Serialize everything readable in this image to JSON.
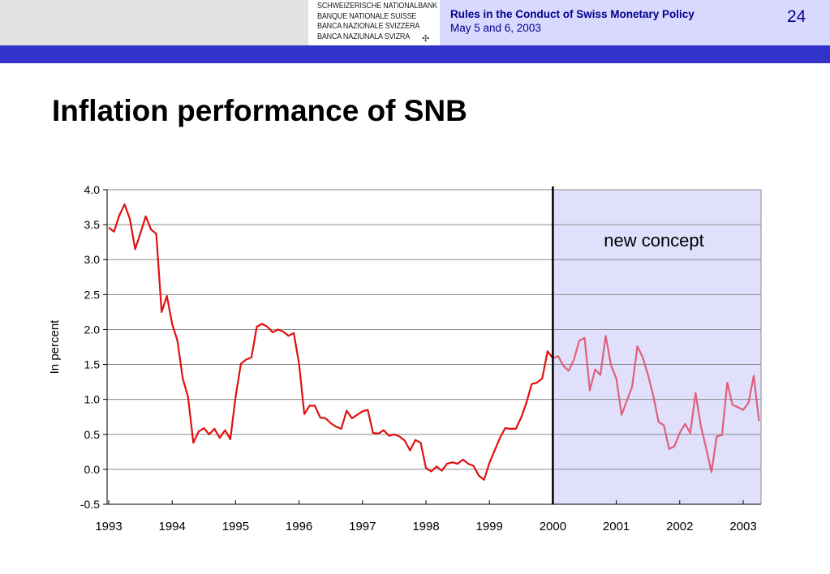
{
  "header": {
    "logo_lines": [
      "SCHWEIZERISCHE NATIONALBANK",
      "BANQUE NATIONALE SUISSE",
      "BANCA NAZIONALE SVIZZERA",
      "BANCA NAZIUNALA SVIZRA"
    ],
    "logo_mark": "✣",
    "title": "Rules in the Conduct of Swiss Monetary Policy",
    "date": "May 5 and 6, 2003",
    "page_number": "24"
  },
  "slide": {
    "title": "Inflation performance of SNB"
  },
  "colors": {
    "band": "#e2e2e2",
    "header_box": "#d9d9ff",
    "blue_bar": "#3333cc",
    "header_text": "#00008b",
    "shade": "#e0e0fc",
    "series_before": "#e01010",
    "series_after": "#e0607a"
  },
  "chart_data": {
    "type": "line",
    "ylabel": "In percent",
    "ylim": [
      -0.5,
      4.0
    ],
    "yticks": [
      "4.0",
      "3.5",
      "3.0",
      "2.5",
      "2.0",
      "1.5",
      "1.0",
      "0.5",
      "0.0",
      "-0.5"
    ],
    "xlim": [
      1993,
      2003.33
    ],
    "xticks": [
      "1993",
      "1994",
      "1995",
      "1996",
      "1997",
      "1998",
      "1999",
      "2000",
      "2001",
      "2002",
      "2003"
    ],
    "grid": true,
    "annotation": "new concept",
    "regime_change_x": 2000,
    "x_start": 1993,
    "step": 0.08333,
    "values": [
      3.46,
      3.4,
      3.63,
      3.79,
      3.58,
      3.15,
      3.38,
      3.62,
      3.43,
      3.37,
      2.25,
      2.48,
      2.08,
      1.84,
      1.3,
      1.04,
      0.38,
      0.54,
      0.59,
      0.5,
      0.58,
      0.45,
      0.56,
      0.43,
      1.04,
      1.51,
      1.57,
      1.6,
      2.04,
      2.08,
      2.04,
      1.96,
      2.0,
      1.97,
      1.91,
      1.95,
      1.51,
      0.79,
      0.91,
      0.91,
      0.74,
      0.73,
      0.66,
      0.61,
      0.58,
      0.84,
      0.73,
      0.78,
      0.83,
      0.85,
      0.52,
      0.51,
      0.56,
      0.48,
      0.5,
      0.47,
      0.41,
      0.27,
      0.42,
      0.38,
      0.02,
      -0.03,
      0.04,
      -0.02,
      0.08,
      0.1,
      0.08,
      0.14,
      0.08,
      0.05,
      -0.09,
      -0.15,
      0.09,
      0.27,
      0.45,
      0.59,
      0.58,
      0.58,
      0.74,
      0.95,
      1.22,
      1.24,
      1.3,
      1.69,
      1.59,
      1.62,
      1.48,
      1.41,
      1.57,
      1.84,
      1.88,
      1.13,
      1.43,
      1.35,
      1.91,
      1.49,
      1.3,
      0.78,
      0.98,
      1.18,
      1.76,
      1.6,
      1.35,
      1.05,
      0.68,
      0.63,
      0.29,
      0.33,
      0.52,
      0.65,
      0.52,
      1.09,
      0.62,
      0.3,
      -0.04,
      0.47,
      0.49,
      1.24,
      0.92,
      0.89,
      0.85,
      0.95,
      1.34,
      0.69
    ]
  }
}
